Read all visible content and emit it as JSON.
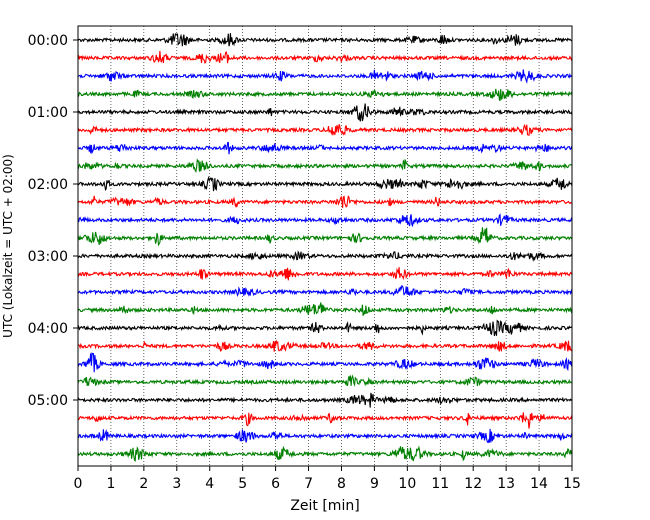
{
  "chart_data": {
    "type": "line",
    "title": "",
    "xlabel": "Zeit  [min]",
    "ylabel": "UTC (Lokalzeit = UTC + 02:00)",
    "xlim": [
      0,
      15
    ],
    "x_ticks": [
      0,
      1,
      2,
      3,
      4,
      5,
      6,
      7,
      8,
      9,
      10,
      11,
      12,
      13,
      14,
      15
    ],
    "y_tick_labels": [
      "00:00",
      "01:00",
      "02:00",
      "03:00",
      "04:00",
      "05:00"
    ],
    "trace_interval_minutes": 15,
    "trace_start": "00:00",
    "trace_count": 24,
    "trace_colors": [
      "#000000",
      "#ff0000",
      "#0000ff",
      "#008000"
    ],
    "grid": "vertical dotted at each minute",
    "legend": "none"
  }
}
